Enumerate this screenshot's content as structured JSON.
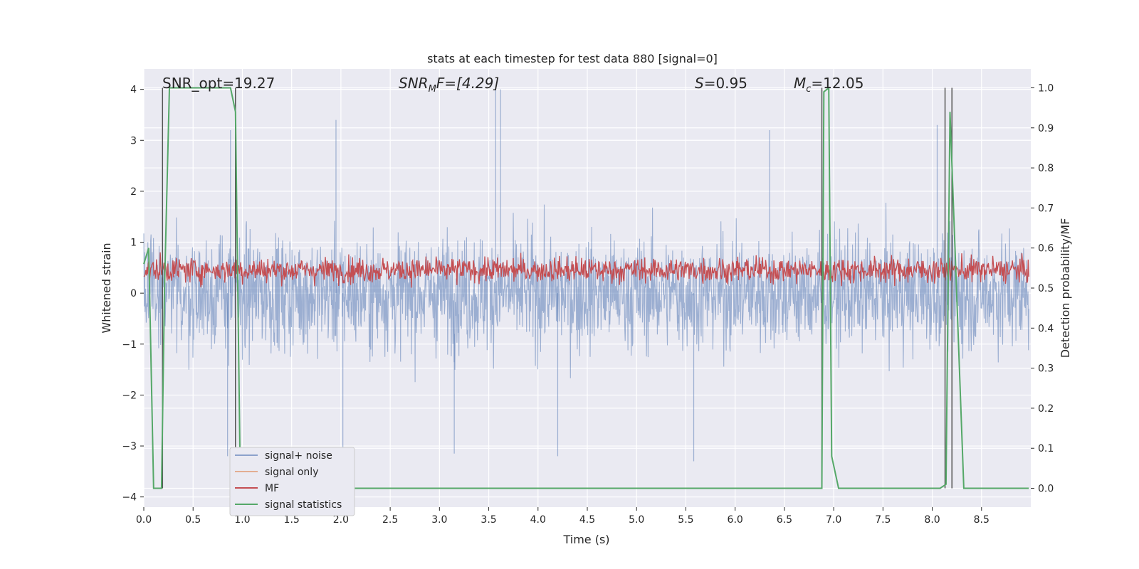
{
  "chart_data": {
    "type": "line",
    "title": "stats at each timestep for test data 880 [signal=0]",
    "xlabel": "Time (s)",
    "ylabel_left": "Whitened strain",
    "ylabel_right": "Detection probability/MF",
    "xlim": [
      0,
      9.0
    ],
    "ylim_left": [
      -4.2,
      4.4
    ],
    "ylim_right": [
      -0.047,
      1.047
    ],
    "x_ticks": [
      "0.0",
      "0.5",
      "1.0",
      "1.5",
      "2.0",
      "2.5",
      "3.0",
      "3.5",
      "4.0",
      "4.5",
      "5.0",
      "5.5",
      "6.0",
      "6.5",
      "7.0",
      "7.5",
      "8.0",
      "8.5"
    ],
    "y_ticks_left": [
      "4",
      "3",
      "2",
      "1",
      "0",
      "−1",
      "−2",
      "−3",
      "−4"
    ],
    "y_ticks_right": [
      "1.0",
      "0.9",
      "0.8",
      "0.7",
      "0.6",
      "0.5",
      "0.4",
      "0.3",
      "0.2",
      "0.1",
      "0.0"
    ],
    "grid": true,
    "legend_position": "lower-left",
    "annotations": {
      "snr_opt": "SNR_opt=19.27",
      "snr_mf_prefix": "SNR",
      "snr_mf_sub": "M",
      "snr_mf_suffix": "F=[4.29]",
      "s_prefix": "S",
      "s_value": "=0.95",
      "mc_prefix": "M",
      "mc_sub": "c",
      "mc_value": "=12.05"
    },
    "series": [
      {
        "name": "signal+ noise",
        "color": "#4c72b0",
        "description_values": "dense noise, typical range about -2.5 to 2.5, peaks near ±4",
        "peaks": [
          [
            3.57,
            4.0
          ],
          [
            3.62,
            4.0
          ],
          [
            1.95,
            3.4
          ],
          [
            8.05,
            3.3
          ],
          [
            8.2,
            3.3
          ],
          [
            0.88,
            3.2
          ],
          [
            6.35,
            3.2
          ],
          [
            5.58,
            -3.3
          ],
          [
            4.2,
            -3.2
          ],
          [
            3.15,
            -3.15
          ],
          [
            2.02,
            -3.1
          ],
          [
            0.85,
            -3.2
          ]
        ]
      },
      {
        "name": "signal only",
        "color": "#dd8452",
        "values": []
      },
      {
        "name": "MF",
        "color": "#c44e52",
        "axis": "right",
        "description_values": "noisy band mostly between 0.5 and 0.6"
      },
      {
        "name": "signal statistics",
        "color": "#55a868",
        "axis": "right",
        "x": [
          0.0,
          0.05,
          0.1,
          0.12,
          0.18,
          0.21,
          0.26,
          0.88,
          0.93,
          0.98,
          6.88,
          6.9,
          6.95,
          6.98,
          7.05,
          8.08,
          8.14,
          8.18,
          8.32,
          8.98
        ],
        "y": [
          0.56,
          0.6,
          0.0,
          0.0,
          0.0,
          0.5,
          1.0,
          1.0,
          0.94,
          0.0,
          0.0,
          0.99,
          1.0,
          0.08,
          0.0,
          0.0,
          0.01,
          0.94,
          0.0,
          0.0
        ]
      }
    ],
    "vertical_markers": [
      0.19,
      0.93,
      6.88,
      8.13,
      8.2
    ],
    "legend": [
      "signal+ noise",
      "signal only",
      "MF",
      "signal statistics"
    ]
  }
}
